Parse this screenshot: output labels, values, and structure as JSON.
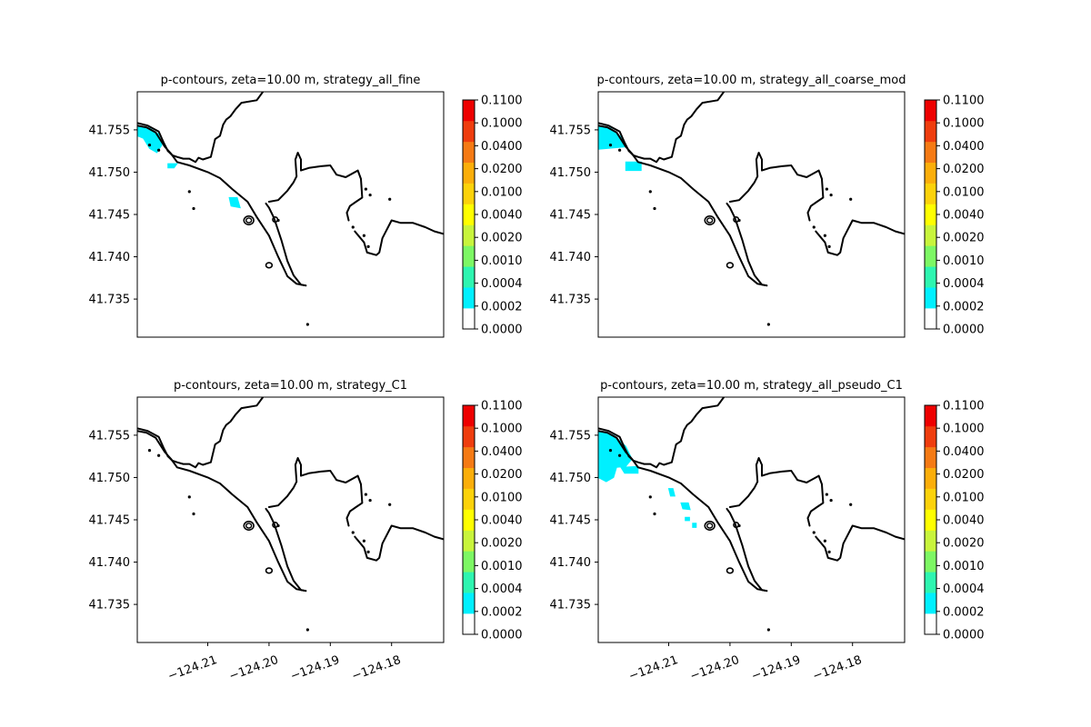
{
  "chart_data": [
    {
      "type": "contour",
      "title": "p-contours, zeta=10.00 m, strategy_all_fine",
      "xlabel": "",
      "ylabel": "",
      "xlim": [
        -124.2215,
        -124.1715
      ],
      "ylim": [
        41.7305,
        41.7595
      ],
      "xticks": [
        "−124.21",
        "−124.20",
        "−124.19",
        "−124.18"
      ],
      "xticks_visible": false,
      "yticks": [
        "41.735",
        "41.740",
        "41.745",
        "41.750",
        "41.755"
      ],
      "contour_regions": [
        {
          "level_index": 0,
          "points": [
            [
              -124.2215,
              41.7555
            ],
            [
              -124.2195,
              41.7552
            ],
            [
              -124.218,
              41.7545
            ],
            [
              -124.2175,
              41.7532
            ],
            [
              -124.2183,
              41.7523
            ],
            [
              -124.2195,
              41.7528
            ],
            [
              -124.2205,
              41.754
            ],
            [
              -124.2215,
              41.7543
            ]
          ]
        },
        {
          "level_index": 0,
          "points": [
            [
              -124.2165,
              41.751
            ],
            [
              -124.215,
              41.751
            ],
            [
              -124.2155,
              41.7505
            ],
            [
              -124.2165,
              41.7505
            ]
          ]
        },
        {
          "level_index": 0,
          "points": [
            [
              -124.2065,
              41.747
            ],
            [
              -124.2052,
              41.747
            ],
            [
              -124.2047,
              41.7458
            ],
            [
              -124.2062,
              41.746
            ]
          ]
        }
      ]
    },
    {
      "type": "contour",
      "title": "p-contours, zeta=10.00 m, strategy_all_coarse_mod",
      "xlabel": "",
      "ylabel": "",
      "xlim": [
        -124.2215,
        -124.1715
      ],
      "ylim": [
        41.7305,
        41.7595
      ],
      "xticks": [
        "−124.21",
        "−124.20",
        "−124.19",
        "−124.18"
      ],
      "xticks_visible": false,
      "yticks": [
        "41.735",
        "41.740",
        "41.745",
        "41.750",
        "41.755"
      ],
      "contour_regions": [
        {
          "level_index": 0,
          "points": [
            [
              -124.2215,
              41.7555
            ],
            [
              -124.2195,
              41.7552
            ],
            [
              -124.2175,
              41.754
            ],
            [
              -124.217,
              41.753
            ],
            [
              -124.2215,
              41.7527
            ]
          ]
        },
        {
          "level_index": 0,
          "points": [
            [
              -124.217,
              41.7512
            ],
            [
              -124.2145,
              41.7512
            ],
            [
              -124.2145,
              41.7502
            ],
            [
              -124.217,
              41.7502
            ]
          ]
        }
      ]
    },
    {
      "type": "contour",
      "title": "p-contours, zeta=10.00 m, strategy_C1",
      "xlabel": "",
      "ylabel": "",
      "xlim": [
        -124.2215,
        -124.1715
      ],
      "ylim": [
        41.7305,
        41.7595
      ],
      "xticks": [
        "−124.21",
        "−124.20",
        "−124.19",
        "−124.18"
      ],
      "xticks_visible": true,
      "yticks": [
        "41.735",
        "41.740",
        "41.745",
        "41.750",
        "41.755"
      ],
      "contour_regions": []
    },
    {
      "type": "contour",
      "title": "p-contours, zeta=10.00 m, strategy_all_pseudo_C1",
      "xlabel": "",
      "ylabel": "",
      "xlim": [
        -124.2215,
        -124.1715
      ],
      "ylim": [
        41.7305,
        41.7595
      ],
      "xticks": [
        "−124.21",
        "−124.20",
        "−124.19",
        "−124.18"
      ],
      "xticks_visible": true,
      "yticks": [
        "41.735",
        "41.740",
        "41.745",
        "41.750",
        "41.755"
      ],
      "contour_regions": [
        {
          "level_index": 0,
          "points": [
            [
              -124.2215,
              41.7555
            ],
            [
              -124.219,
              41.755
            ],
            [
              -124.217,
              41.7537
            ],
            [
              -124.216,
              41.7522
            ],
            [
              -124.217,
              41.7513
            ],
            [
              -124.2185,
              41.7512
            ],
            [
              -124.219,
              41.75
            ],
            [
              -124.2202,
              41.7495
            ],
            [
              -124.2215,
              41.75
            ]
          ]
        },
        {
          "level_index": 0,
          "points": [
            [
              -124.2178,
              41.7512
            ],
            [
              -124.215,
              41.7513
            ],
            [
              -124.215,
              41.7505
            ],
            [
              -124.2172,
              41.7505
            ]
          ]
        },
        {
          "level_index": 0,
          "points": [
            [
              -124.21,
              41.7487
            ],
            [
              -124.2093,
              41.7487
            ],
            [
              -124.209,
              41.7478
            ],
            [
              -124.2097,
              41.7478
            ]
          ]
        },
        {
          "level_index": 0,
          "points": [
            [
              -124.208,
              41.747
            ],
            [
              -124.2068,
              41.747
            ],
            [
              -124.2065,
              41.7462
            ],
            [
              -124.2077,
              41.7463
            ]
          ]
        },
        {
          "level_index": 0,
          "points": [
            [
              -124.2073,
              41.7453
            ],
            [
              -124.2066,
              41.7453
            ],
            [
              -124.2066,
              41.7449
            ],
            [
              -124.2073,
              41.7449
            ]
          ]
        },
        {
          "level_index": 0,
          "points": [
            [
              -124.2061,
              41.7446
            ],
            [
              -124.2055,
              41.7446
            ],
            [
              -124.2055,
              41.7441
            ],
            [
              -124.2061,
              41.7441
            ]
          ]
        }
      ]
    }
  ],
  "colorbar": {
    "tick_labels": [
      "0.1100",
      "0.1000",
      "0.0400",
      "0.0200",
      "0.0100",
      "0.0040",
      "0.0020",
      "0.0010",
      "0.0004",
      "0.0002",
      "0.0000"
    ],
    "band_colors_bottom_to_top": [
      "#ffffff",
      "#00f0ff",
      "#2ef5b0",
      "#7df764",
      "#c8f43c",
      "#ffff00",
      "#fcd20a",
      "#fbae0a",
      "#f57a14",
      "#ef3d0e",
      "#ee0000"
    ]
  },
  "coastline": {
    "stroke_color": "#000000",
    "lines": [
      [
        [
          -124.2215,
          41.7555
        ],
        [
          -124.22,
          41.7553
        ],
        [
          -124.2185,
          41.7547
        ],
        [
          -124.217,
          41.753
        ],
        [
          -124.216,
          41.7522
        ],
        [
          -124.215,
          41.7512
        ],
        [
          -124.213,
          41.7508
        ],
        [
          -124.21,
          41.75
        ],
        [
          -124.208,
          41.7493
        ],
        [
          -124.206,
          41.748
        ],
        [
          -124.2035,
          41.7465
        ],
        [
          -124.202,
          41.7447
        ],
        [
          -124.2,
          41.7425
        ],
        [
          -124.1985,
          41.74
        ],
        [
          -124.197,
          41.7377
        ],
        [
          -124.1955,
          41.7368
        ],
        [
          -124.194,
          41.7366
        ]
      ],
      [
        [
          -124.2215,
          41.7558
        ],
        [
          -124.2198,
          41.7555
        ],
        [
          -124.218,
          41.7548
        ],
        [
          -124.2172,
          41.7535
        ],
        [
          -124.2165,
          41.7525
        ]
      ],
      [
        [
          -124.2165,
          41.7525
        ],
        [
          -124.2158,
          41.752
        ],
        [
          -124.215,
          41.7518
        ],
        [
          -124.214,
          41.7516
        ],
        [
          -124.213,
          41.7516
        ],
        [
          -124.212,
          41.7512
        ],
        [
          -124.2115,
          41.7517
        ],
        [
          -124.2108,
          41.7515
        ],
        [
          -124.2095,
          41.7518
        ],
        [
          -124.2092,
          41.7527
        ],
        [
          -124.2088,
          41.7539
        ],
        [
          -124.208,
          41.7543
        ],
        [
          -124.2075,
          41.7556
        ],
        [
          -124.207,
          41.7562
        ],
        [
          -124.2063,
          41.7566
        ],
        [
          -124.2055,
          41.7574
        ],
        [
          -124.2045,
          41.7582
        ],
        [
          -124.202,
          41.7585
        ],
        [
          -124.201,
          41.7595
        ]
      ],
      [
        [
          -124.2,
          41.7465
        ],
        [
          -124.1985,
          41.7467
        ],
        [
          -124.197,
          41.7478
        ],
        [
          -124.196,
          41.7488
        ],
        [
          -124.1955,
          41.7495
        ],
        [
          -124.1957,
          41.7515
        ],
        [
          -124.1953,
          41.7523
        ],
        [
          -124.1948,
          41.7515
        ],
        [
          -124.1948,
          41.7502
        ],
        [
          -124.1935,
          41.7505
        ],
        [
          -124.1915,
          41.7507
        ],
        [
          -124.19,
          41.7508
        ],
        [
          -124.189,
          41.7497
        ],
        [
          -124.1875,
          41.7494
        ],
        [
          -124.1855,
          41.7502
        ],
        [
          -124.185,
          41.7492
        ],
        [
          -124.1848,
          41.747
        ],
        [
          -124.1858,
          41.7465
        ],
        [
          -124.1868,
          41.746
        ],
        [
          -124.1873,
          41.7452
        ],
        [
          -124.187,
          41.7443
        ]
      ],
      [
        [
          -124.186,
          41.743
        ],
        [
          -124.1845,
          41.7417
        ],
        [
          -124.184,
          41.7405
        ],
        [
          -124.1825,
          41.7402
        ],
        [
          -124.182,
          41.7405
        ],
        [
          -124.1815,
          41.7422
        ],
        [
          -124.18,
          41.7443
        ],
        [
          -124.1785,
          41.744
        ],
        [
          -124.1765,
          41.744
        ],
        [
          -124.1745,
          41.7435
        ],
        [
          -124.173,
          41.743
        ],
        [
          -124.1715,
          41.7427
        ]
      ],
      [
        [
          -124.2005,
          41.7463
        ],
        [
          -124.2,
          41.7458
        ],
        [
          -124.1992,
          41.7446
        ],
        [
          -124.198,
          41.742
        ],
        [
          -124.197,
          41.7395
        ],
        [
          -124.196,
          41.7378
        ],
        [
          -124.1948,
          41.7367
        ],
        [
          -124.194,
          41.7366
        ]
      ]
    ],
    "islands": [
      {
        "center": [
          -124.2033,
          41.7443
        ],
        "rx_deg": 0.0008,
        "ry_deg": 0.0005,
        "double": true
      },
      {
        "center": [
          -124.2,
          41.739
        ],
        "rx_deg": 0.0005,
        "ry_deg": 0.0003,
        "double": false
      },
      {
        "center": [
          -124.199,
          41.7444
        ],
        "rx_deg": 0.0004,
        "ry_deg": 0.0003,
        "double": false
      }
    ],
    "dots": [
      [
        -124.2195,
        41.7532
      ],
      [
        -124.218,
        41.7526
      ],
      [
        -124.213,
        41.7477
      ],
      [
        -124.2123,
        41.7457
      ],
      [
        -124.1985,
        41.7443
      ],
      [
        -124.1937,
        41.732
      ],
      [
        -124.1863,
        41.7435
      ],
      [
        -124.1845,
        41.7425
      ],
      [
        -124.1838,
        41.7412
      ],
      [
        -124.1842,
        41.748
      ],
      [
        -124.1835,
        41.7473
      ],
      [
        -124.1803,
        41.7468
      ]
    ]
  }
}
